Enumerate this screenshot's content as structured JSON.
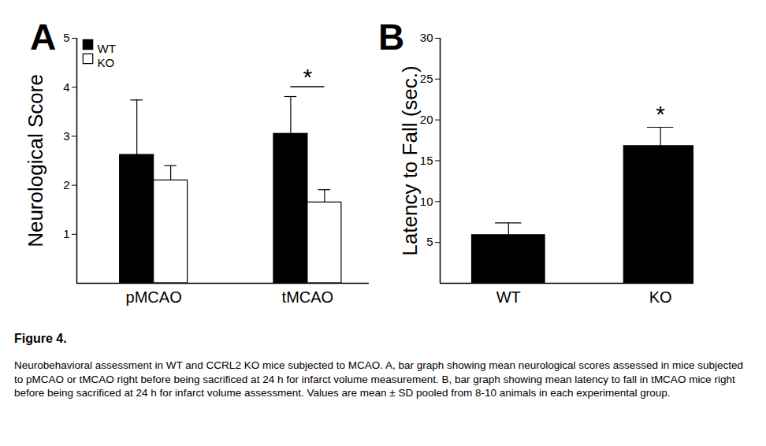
{
  "caption": {
    "title": "Figure 4.",
    "text": "Neurobehavioral assessment in WT and CCRL2 KO mice subjected to MCAO. A, bar graph showing mean neurological scores assessed in mice subjected to pMCAO or tMCAO right before being sacrificed at 24 h for infarct volume measurement. B, bar graph showing mean latency to fall in tMCAO mice right before being sacrificed at 24 h for infarct volume assessment. Values are mean ± SD pooled from 8-10 animals in each experimental group."
  },
  "chart_data": [
    {
      "type": "bar",
      "title": "A",
      "y_label": "Neurological Score",
      "categories": [
        "pMCAO",
        "tMCAO"
      ],
      "series": [
        {
          "name": "WT",
          "color": "#000000",
          "values": [
            2.62,
            3.05
          ],
          "errors": [
            1.12,
            0.76
          ]
        },
        {
          "name": "KO",
          "color": "#ffffff",
          "values": [
            2.1,
            1.65
          ],
          "errors": [
            0.3,
            0.26
          ]
        }
      ],
      "ylim": [
        0,
        5
      ],
      "yticks": [
        1,
        2,
        3,
        4,
        5
      ],
      "legend": "top-left",
      "annotations": [
        {
          "text": "*",
          "category": "tMCAO"
        }
      ]
    },
    {
      "type": "bar",
      "title": "B",
      "y_label": "Latency to Fall (sec.)",
      "categories": [
        "WT",
        "KO"
      ],
      "values": [
        5.9,
        16.8
      ],
      "errors": [
        1.5,
        2.3
      ],
      "color": "#000000",
      "ylim": [
        0,
        30
      ],
      "yticks": [
        5,
        10,
        15,
        20,
        25,
        30
      ],
      "annotations": [
        {
          "text": "*",
          "category": "KO"
        }
      ]
    }
  ]
}
